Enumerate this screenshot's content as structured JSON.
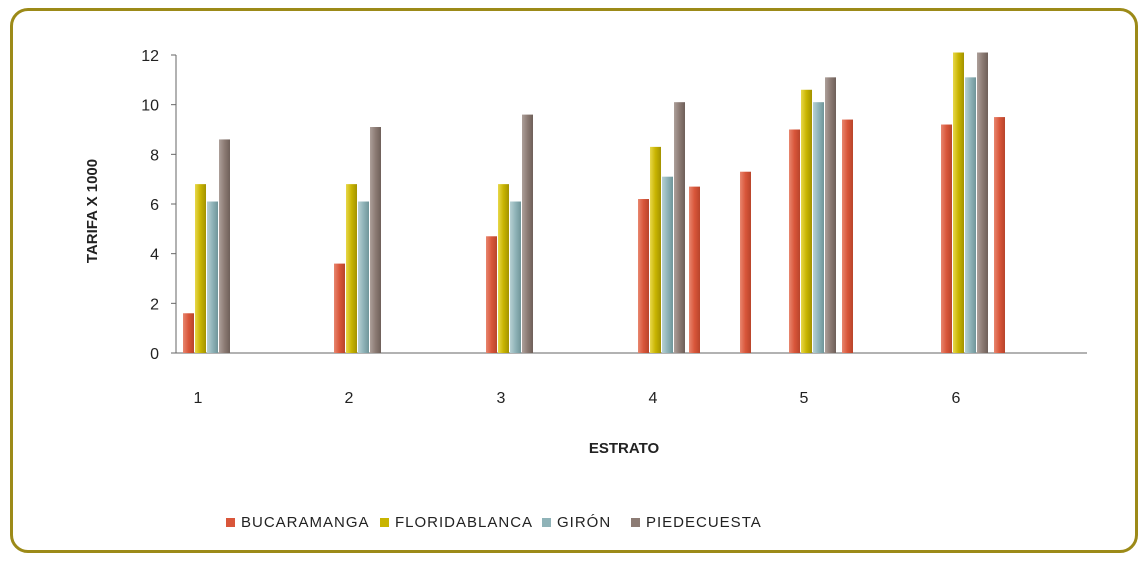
{
  "chart_data": {
    "type": "bar",
    "title": "",
    "xlabel": "ESTRATO",
    "ylabel": "TARIFA X 1000",
    "ylim": [
      0,
      12
    ],
    "yticks": [
      0,
      2,
      4,
      6,
      8,
      10,
      12
    ],
    "categories": [
      "1",
      "2",
      "3",
      "4",
      "5",
      "6"
    ],
    "grid": false,
    "legend_position": "bottom",
    "series": [
      {
        "name": "BUCARAMANGA",
        "color": "#d9563a",
        "values": [
          1.6,
          3.6,
          4.7,
          6.2,
          9.0,
          9.2
        ]
      },
      {
        "name": "FLORIDABLANCA",
        "color": "#c8b400",
        "values": [
          6.8,
          6.8,
          6.8,
          8.3,
          10.6,
          12.1
        ]
      },
      {
        "name": "GIRÓN",
        "color": "#8fb3b8",
        "values": [
          6.1,
          6.1,
          6.1,
          7.1,
          10.1,
          11.1
        ]
      },
      {
        "name": "PIEDECUESTA",
        "color": "#8c7b74",
        "values": [
          8.6,
          9.1,
          9.6,
          10.1,
          11.1,
          12.1
        ]
      }
    ],
    "extra_bars": {
      "series": "BUCARAMANGA",
      "values": [
        6.7,
        7.3,
        9.4,
        9.5
      ]
    }
  }
}
